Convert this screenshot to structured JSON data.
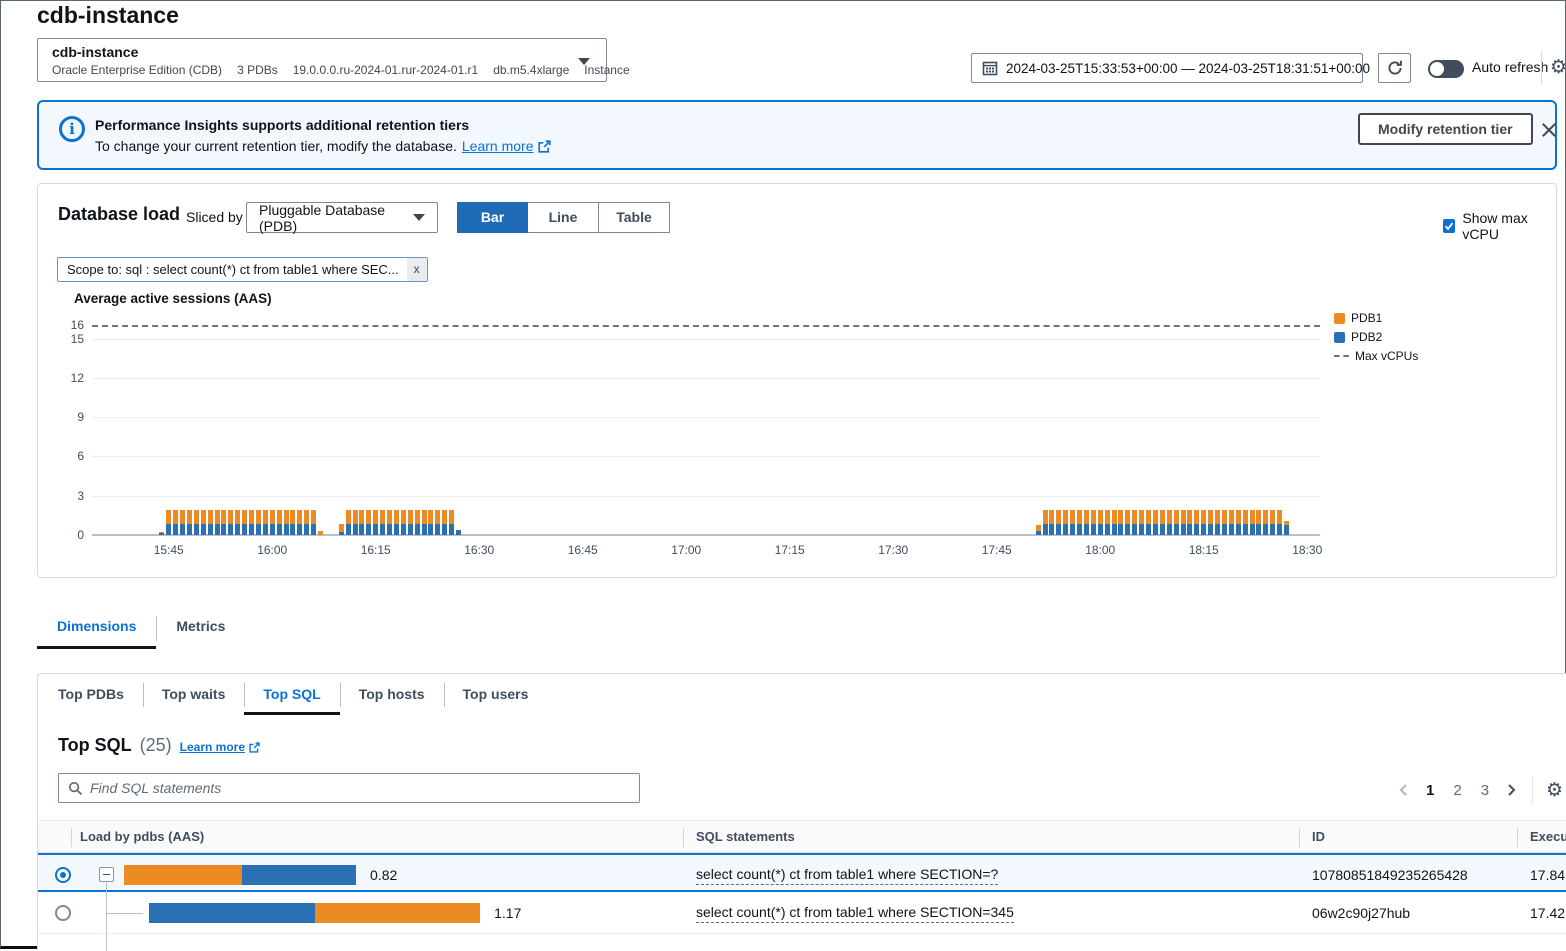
{
  "colors": {
    "accent": "#0972d3",
    "pdb1": "#ec8b23",
    "pdb2": "#2970b5",
    "selected_row_bg": "#f2f8fd"
  },
  "page": {
    "title": "cdb-instance"
  },
  "instance_selector": {
    "name": "cdb-instance",
    "details": [
      "Oracle Enterprise Edition (CDB)",
      "3 PDBs",
      "19.0.0.0.ru-2024-01.rur-2024-01.r1",
      "db.m5.4xlarge",
      "Instance"
    ]
  },
  "time_controls": {
    "range": "2024-03-25T15:33:53+00:00 — 2024-03-25T18:31:51+00:00",
    "auto_refresh_label": "Auto refresh",
    "auto_refresh_on": false
  },
  "banner": {
    "title": "Performance Insights supports additional retention tiers",
    "message": "To change your current retention tier, modify the database.",
    "link_label": "Learn more",
    "button_label": "Modify retention tier"
  },
  "database_load": {
    "title": "Database load",
    "sliced_by_label": "Sliced by",
    "slice_value": "Pluggable Database (PDB)",
    "view_modes": [
      "Bar",
      "Line",
      "Table"
    ],
    "active_view": "Bar",
    "show_max_vcpu_label": "Show max vCPU",
    "show_max_vcpu_checked": true,
    "scope_tag": "Scope to: sql : select count(*) ct from table1 where SEC..."
  },
  "chart_data": {
    "type": "bar",
    "stacked": true,
    "title": "Average active sessions (AAS)",
    "xlabel": "",
    "ylabel": "Average active sessions (AAS)",
    "x_start": "15:33:53",
    "x_end": "18:31:51",
    "x_ticks": [
      "15:45",
      "16:00",
      "16:15",
      "16:30",
      "16:45",
      "17:00",
      "17:15",
      "17:30",
      "17:45",
      "18:00",
      "18:15",
      "18:30"
    ],
    "y_ticks": [
      16,
      15,
      12,
      9,
      6,
      3,
      0
    ],
    "ylim": [
      0,
      16.8
    ],
    "grid": true,
    "max_vcpus": 16,
    "legend_position": "right",
    "legend": [
      {
        "label": "PDB1",
        "type": "box",
        "color": "#ec8b23"
      },
      {
        "label": "PDB2",
        "type": "box",
        "color": "#2970b5"
      },
      {
        "label": "Max vCPUs",
        "type": "dashed-line",
        "color": "#697585"
      }
    ],
    "series_order_bottom_to_top": [
      "PDB2",
      "PDB1"
    ],
    "segments": [
      {
        "from": "15:44",
        "to": "15:44",
        "PDB2": 0.12,
        "PDB1": 0.1
      },
      {
        "from": "15:45",
        "to": "16:06",
        "PDB2": 0.85,
        "PDB1": 1.05
      },
      {
        "from": "16:07",
        "to": "16:07",
        "PDB2": 0.0,
        "PDB1": 0.3
      },
      {
        "from": "16:10",
        "to": "16:10",
        "PDB2": 0.25,
        "PDB1": 0.6
      },
      {
        "from": "16:11",
        "to": "16:26",
        "PDB2": 0.85,
        "PDB1": 1.05
      },
      {
        "from": "16:27",
        "to": "16:27",
        "PDB2": 0.4,
        "PDB1": 0.0
      },
      {
        "from": "17:51",
        "to": "17:51",
        "PDB2": 0.3,
        "PDB1": 0.5
      },
      {
        "from": "17:52",
        "to": "18:26",
        "PDB2": 0.85,
        "PDB1": 1.05
      },
      {
        "from": "18:27",
        "to": "18:27",
        "PDB2": 0.75,
        "PDB1": 0.3
      }
    ]
  },
  "main_tabs": {
    "items": [
      "Dimensions",
      "Metrics"
    ],
    "active": "Dimensions"
  },
  "dimension_tabs": {
    "items": [
      "Top PDBs",
      "Top waits",
      "Top SQL",
      "Top hosts",
      "Top users"
    ],
    "active": "Top SQL"
  },
  "top_sql": {
    "title": "Top SQL",
    "count": "(25)",
    "learn_more_label": "Learn more",
    "search_placeholder": "Find SQL statements",
    "pagination": {
      "pages": [
        "1",
        "2",
        "3"
      ],
      "current": "1"
    },
    "columns": [
      "Load by pdbs (AAS)",
      "SQL statements",
      "ID",
      "Execu"
    ],
    "rows": [
      {
        "selected": true,
        "expandable": true,
        "child": false,
        "load_label": "0.82",
        "load_value": 0.82,
        "segments": [
          {
            "series": "PDB1",
            "frac": 0.51
          },
          {
            "series": "PDB2",
            "frac": 0.49
          }
        ],
        "sql": "select count(*) ct from table1 where SECTION=?",
        "id": "10780851849235265428",
        "executions": "17.84"
      },
      {
        "selected": false,
        "expandable": false,
        "child": true,
        "load_label": "1.17",
        "load_value": 1.17,
        "segments": [
          {
            "series": "PDB2",
            "frac": 0.5
          },
          {
            "series": "PDB1",
            "frac": 0.5
          }
        ],
        "sql": "select count(*) ct from table1 where SECTION=345",
        "id": "06w2c90j27hub",
        "executions": "17.42"
      }
    ]
  }
}
